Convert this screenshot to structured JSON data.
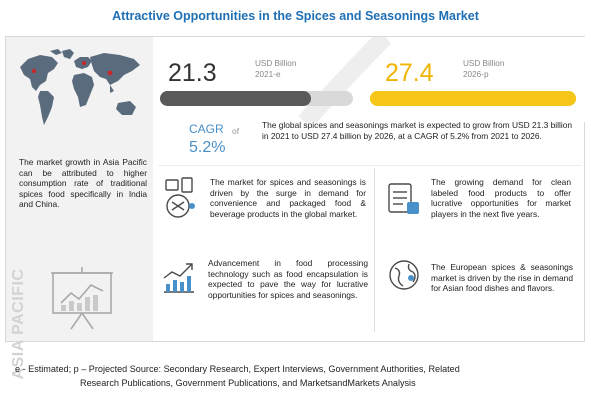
{
  "header": {
    "title": "Attractive Opportunities in the Spices and Seasonings Market"
  },
  "left_panel": {
    "text": "The market growth in Asia Pacific can be attributed to higher consumption rate of traditional spices food specifically in India and China.",
    "region_label": "ASIA PACIFIC"
  },
  "metrics": {
    "value_2021": "21.3",
    "unit_2021_line1": "USD Billion",
    "unit_2021_line2": "2021-e",
    "bar_2021_fill": 0.78,
    "value_2026": "27.4",
    "unit_2026_line1": "USD Billion",
    "unit_2026_line2": "2026-p",
    "bar_2026_fill": 1.0,
    "cagr_label": "CAGR",
    "cagr_of": "of",
    "cagr_value": "5.2%",
    "summary": "The global spices and seasonings market is expected to grow from USD 21.3 billion in 2021 to USD 27.4 billion by 2026, at a CAGR of 5.2% from 2021 to 2026."
  },
  "cards": {
    "convenience": "The market for spices and seasonings is driven by the surge in demand for convenience and packaged food & beverage products in the global market.",
    "clean_label": "The growing demand for clean labeled food products to offer lucrative opportunities for market players in the next five years.",
    "processing": "Advancement in food processing technology such as food encapsulation is expected to pave the way for lucrative opportunities for spices and seasonings.",
    "europe": "The European spices & seasonings market is driven by the rise in demand for Asian food dishes and flavors."
  },
  "footnote": {
    "line1": "e - Estimated; p – Projected Source: Secondary Research, Expert Interviews, Government Authorities, Related",
    "line2": "Research Publications, Government Publications, and MarketsandMarkets Analysis"
  },
  "colors": {
    "title_blue": "#1f6fb5",
    "bar_2021": "#595959",
    "bar_2026": "#f5c518",
    "cagr_blue": "#4a90c8",
    "map_gray": "#5a6b7d"
  }
}
